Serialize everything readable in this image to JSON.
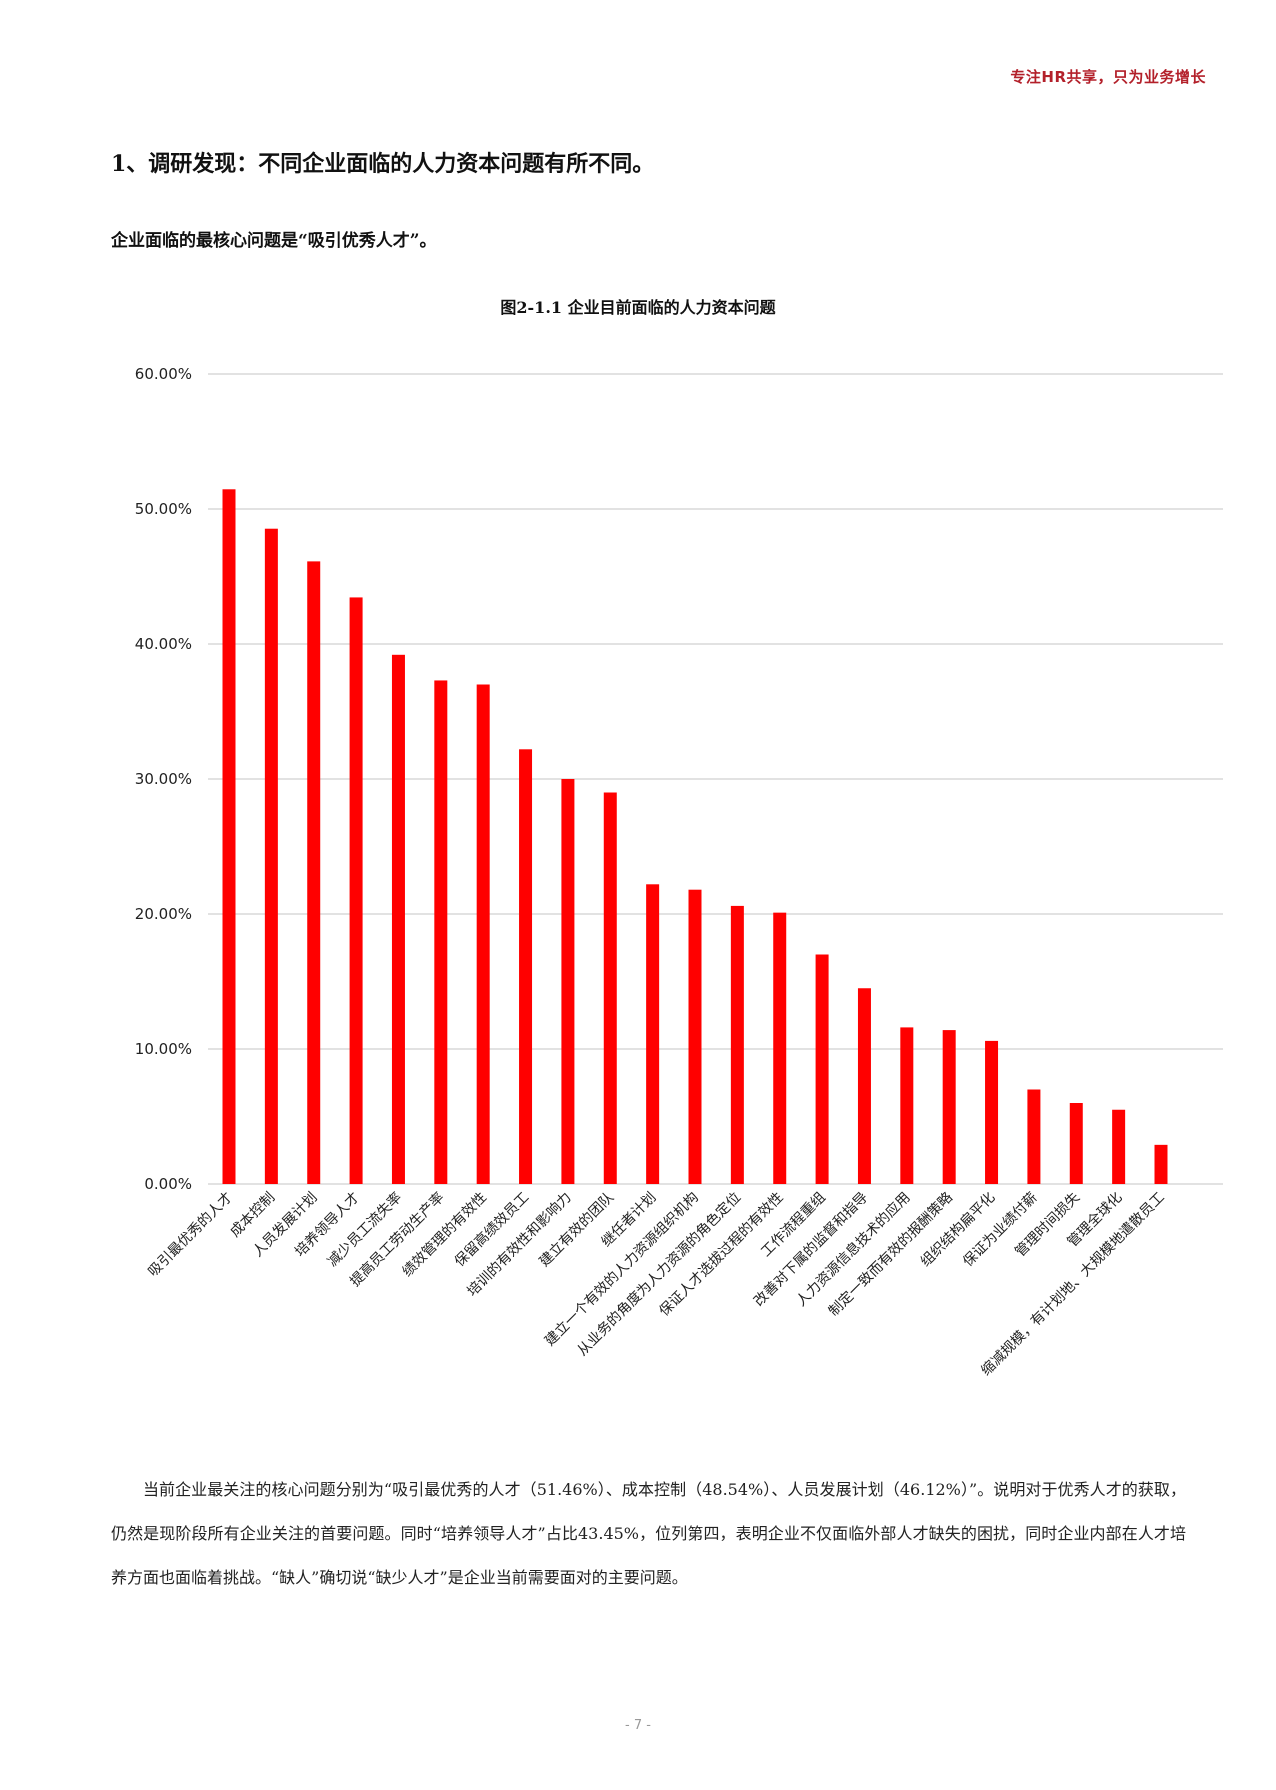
{
  "header": {
    "tagline": "专注HR共享，只为业务增长"
  },
  "section": {
    "title": "1、调研发现：不同企业面临的人力资本问题有所不同。",
    "lead": "企业面临的最核心问题是“吸引优秀人才”。"
  },
  "figure": {
    "title": "图2-1.1 企业目前面临的人力资本问题"
  },
  "colors": {
    "bar": "#ff0000",
    "grid": "#d9d9d9",
    "tagline": "#b3202a"
  },
  "chart_data": {
    "type": "bar",
    "title": "图2-1.1 企业目前面临的人力资本问题",
    "xlabel": "",
    "ylabel": "",
    "ylim": [
      0,
      60
    ],
    "y_ticks": [
      "0.00%",
      "10.00%",
      "20.00%",
      "30.00%",
      "40.00%",
      "50.00%",
      "60.00%"
    ],
    "grid": true,
    "legend": "none",
    "categories": [
      "吸引最优秀的人才",
      "成本控制",
      "人员发展计划",
      "培养领导人才",
      "减少员工流失率",
      "提高员工劳动生产率",
      "绩效管理的有效性",
      "保留高绩效员工",
      "培训的有效性和影响力",
      "建立有效的团队",
      "继任者计划",
      "建立一个有效的人力资源组织机构",
      "从业务的角度为人力资源的角色定位",
      "保证人才选拔过程的有效性",
      "工作流程重组",
      "改善对下属的监督和指导",
      "人力资源信息技术的应用",
      "制定一致而有效的报酬策略",
      "组织结构扁平化",
      "保证为业绩付薪",
      "管理时间损失",
      "管理全球化",
      "缩减规模，有计划地、大规模地遣散员工"
    ],
    "values": [
      51.46,
      48.54,
      46.12,
      43.45,
      39.2,
      37.3,
      37.0,
      32.2,
      30.0,
      29.0,
      22.2,
      21.8,
      20.6,
      20.1,
      17.0,
      14.5,
      11.6,
      11.4,
      10.6,
      7.0,
      6.0,
      5.5,
      2.9
    ]
  },
  "body": {
    "paragraph": "当前企业最关注的核心问题分别为“吸引最优秀的人才（51.46%）、成本控制（48.54%）、人员发展计划（46.12%）”。说明对于优秀人才的获取，仍然是现阶段所有企业关注的首要问题。同时“培养领导人才”占比43.45%，位列第四，表明企业不仅面临外部人才缺失的困扰，同时企业内部在人才培养方面也面临着挑战。“缺人”确切说“缺少人才”是企业当前需要面对的主要问题。"
  },
  "footer": {
    "page_number": "- 7 -"
  }
}
